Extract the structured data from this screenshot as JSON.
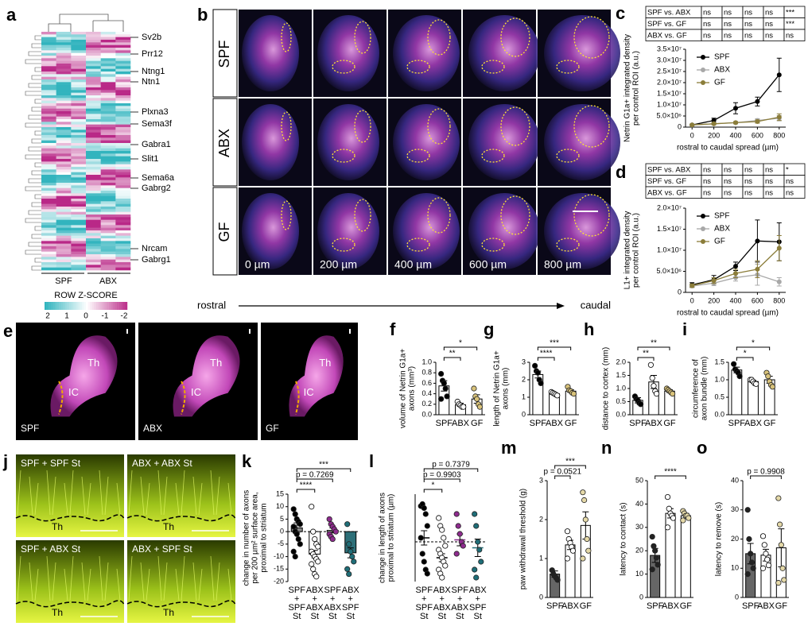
{
  "panel_letters": [
    "a",
    "b",
    "e",
    "j"
  ],
  "heatmap": {
    "genes": [
      "Sv2b",
      "Prr12",
      "Ntng1",
      "Ntn1",
      "Plxna3",
      "Sema3f",
      "Gabra1",
      "Slit1",
      "Sema6a",
      "Gabrg2",
      "Nrcam",
      "Gabrg1"
    ],
    "groups": [
      "SPF",
      "ABX"
    ],
    "scale_title": "ROW Z-SCORE",
    "scale_labels": [
      "2",
      "1",
      "0",
      "-1",
      "-2"
    ]
  },
  "sections": {
    "rows": [
      "SPF",
      "ABX",
      "GF"
    ],
    "columns": [
      "0 µm",
      "200 µm",
      "400 µm",
      "600 µm",
      "800 µm"
    ],
    "axis_start": "rostral",
    "axis_end": "caudal"
  },
  "explants": {
    "labels": [
      "SPF",
      "ABX",
      "GF"
    ],
    "th": "Th",
    "ic": "IC"
  },
  "cocultures": {
    "labels": [
      "SPF + SPF St",
      "ABX + ABX St",
      "SPF + ABX St",
      "ABX + SPF St"
    ],
    "th": "Th"
  },
  "chart_data": [
    {
      "type": "line",
      "panel": "c",
      "ylabel": [
        "Netrin G1a+ integrated density",
        "per control ROI (a.u.)"
      ],
      "xlabel": "rostral to caudal spread (µm)",
      "table": [
        [
          "SPF vs. ABX",
          "ns",
          "ns",
          "ns",
          "ns",
          "***"
        ],
        [
          "SPF vs. GF",
          "ns",
          "ns",
          "ns",
          "ns",
          "***"
        ],
        [
          "ABX vs. GF",
          "ns",
          "ns",
          "ns",
          "ns",
          "ns"
        ]
      ],
      "x": [
        0,
        200,
        400,
        600,
        800
      ],
      "xlim": [
        -60,
        860
      ],
      "xticks": [
        0,
        200,
        400,
        600,
        800
      ],
      "ylim": [
        0,
        35000000
      ],
      "yticks": [
        0,
        {
          "value": 5000000,
          "label": "5.0×10⁶"
        },
        {
          "value": 10000000,
          "label": "1.0×10⁷"
        },
        {
          "value": 15000000,
          "label": "1.5×10⁷"
        },
        {
          "value": 20000000,
          "label": "2.0×10⁷"
        },
        {
          "value": 25000000,
          "label": "2.5×10⁷"
        },
        {
          "value": 30000000,
          "label": "3.0×10⁷"
        },
        {
          "value": 35000000,
          "label": "3.5×10⁷"
        }
      ],
      "series": [
        {
          "name": "SPF",
          "color": "#000000",
          "values": [
            1000000,
            3000000,
            8500000,
            11500000,
            23500000
          ],
          "errors": [
            300000,
            1000000,
            2500000,
            2000000,
            7500000
          ]
        },
        {
          "name": "ABX",
          "color": "#a8a8a8",
          "values": [
            1000000,
            1500000,
            2000000,
            3000000,
            4000000
          ],
          "errors": [
            200000,
            500000,
            500000,
            800000,
            1200000
          ]
        },
        {
          "name": "GF",
          "color": "#8b7d3a",
          "values": [
            1000000,
            1500000,
            2000000,
            2500000,
            4500000
          ],
          "errors": [
            200000,
            400000,
            500000,
            700000,
            1500000
          ]
        }
      ]
    },
    {
      "type": "line",
      "panel": "d",
      "ylabel": [
        "L1+ integrated density",
        "per control ROI (a.u.)"
      ],
      "xlabel": "rostral to caudal spread (µm)",
      "table": [
        [
          "SPF vs. ABX",
          "ns",
          "ns",
          "ns",
          "ns",
          "*"
        ],
        [
          "SPF vs. GF",
          "ns",
          "ns",
          "ns",
          "ns",
          "ns"
        ],
        [
          "ABX vs. GF",
          "ns",
          "ns",
          "ns",
          "ns",
          "ns"
        ]
      ],
      "x": [
        0,
        200,
        400,
        600,
        800
      ],
      "xlim": [
        -60,
        860
      ],
      "xticks": [
        0,
        200,
        400,
        600,
        800
      ],
      "ylim": [
        0,
        20000000
      ],
      "yticks": [
        0,
        {
          "value": 5000000,
          "label": "5.0×10⁶"
        },
        {
          "value": 10000000,
          "label": "1.0×10⁷"
        },
        {
          "value": 15000000,
          "label": "1.5×10⁷"
        },
        {
          "value": 20000000,
          "label": "2.0×10⁷"
        }
      ],
      "series": [
        {
          "name": "SPF",
          "color": "#000000",
          "values": [
            1800000,
            3000000,
            6200000,
            12200000,
            12000000
          ],
          "errors": [
            500000,
            1000000,
            1000000,
            5000000,
            4500000
          ]
        },
        {
          "name": "ABX",
          "color": "#a8a8a8",
          "values": [
            1500000,
            2200000,
            3500000,
            4200000,
            2500000
          ],
          "errors": [
            400000,
            600000,
            800000,
            2500000,
            1000000
          ]
        },
        {
          "name": "GF",
          "color": "#8b7d3a",
          "values": [
            1600000,
            2800000,
            4500000,
            5500000,
            10500000
          ],
          "errors": [
            400000,
            700000,
            1000000,
            2000000,
            3000000
          ]
        }
      ]
    },
    {
      "type": "bar",
      "panel": "f",
      "ylabel": [
        "volume of Netrin G1a+",
        "axons (mm³)"
      ],
      "categories": [
        [
          "SPF"
        ],
        [
          "ABX"
        ],
        [
          "GF"
        ]
      ],
      "ylim": [
        0,
        1
      ],
      "yticks": [
        {
          "value": 0,
          "label": "0.0"
        },
        0.2,
        0.4,
        0.6,
        0.8,
        {
          "value": 1,
          "label": "1.0"
        }
      ],
      "values": [
        0.55,
        0.19,
        0.3
      ],
      "errors": [
        0.1,
        0.03,
        0.08
      ],
      "bar_colors": [
        "#ffffff",
        "#ffffff",
        "#ffffff"
      ],
      "point_colors": [
        "#000000",
        "#ffffff",
        "#d8c27a"
      ],
      "points": [
        [
          0.78,
          0.65,
          0.6,
          0.5,
          0.35,
          0.3
        ],
        [
          0.25,
          0.2,
          0.18,
          0.15,
          0.15
        ],
        [
          0.5,
          0.35,
          0.3,
          0.2,
          0.15
        ]
      ],
      "sig": [
        {
          "from": 0,
          "to": 1,
          "label": "**"
        },
        {
          "from": 0,
          "to": 2,
          "label": "*"
        }
      ]
    },
    {
      "type": "bar",
      "panel": "g",
      "ylabel": [
        "length of Netrin G1a+",
        "axons (mm)"
      ],
      "categories": [
        [
          "SPF"
        ],
        [
          "ABX"
        ],
        [
          "GF"
        ]
      ],
      "ylim": [
        0,
        3
      ],
      "yticks": [
        0,
        1,
        2,
        3
      ],
      "values": [
        2.3,
        1.2,
        1.35
      ],
      "errors": [
        0.2,
        0.05,
        0.08
      ],
      "bar_colors": [
        "#ffffff",
        "#ffffff",
        "#ffffff"
      ],
      "point_colors": [
        "#000000",
        "#ffffff",
        "#d8c27a"
      ],
      "points": [
        [
          2.8,
          2.5,
          2.4,
          2.0,
          1.8
        ],
        [
          1.3,
          1.25,
          1.2,
          1.15,
          1.1
        ],
        [
          1.6,
          1.4,
          1.35,
          1.25,
          1.2
        ]
      ],
      "sig": [
        {
          "from": 0,
          "to": 1,
          "label": "****"
        },
        {
          "from": 0,
          "to": 2,
          "label": "***"
        }
      ]
    },
    {
      "type": "bar",
      "panel": "h",
      "ylabel": [
        "distance to cortex (mm)"
      ],
      "categories": [
        [
          "SPF"
        ],
        [
          "ABX"
        ],
        [
          "GF"
        ]
      ],
      "ylim": [
        0,
        2
      ],
      "yticks": [
        {
          "value": 0,
          "label": "0.0"
        },
        0.5,
        {
          "value": 1,
          "label": "1.0"
        },
        1.5,
        {
          "value": 2,
          "label": "2.0"
        }
      ],
      "values": [
        0.55,
        1.25,
        0.9
      ],
      "errors": [
        0.1,
        0.25,
        0.05
      ],
      "bar_colors": [
        "#ffffff",
        "#ffffff",
        "#ffffff"
      ],
      "point_colors": [
        "#000000",
        "#ffffff",
        "#d8c27a"
      ],
      "points": [
        [
          0.7,
          0.6,
          0.55,
          0.45,
          0.4
        ],
        [
          1.9,
          1.4,
          1.1,
          0.9,
          0.8
        ],
        [
          1.0,
          0.95,
          0.9,
          0.85,
          0.8
        ]
      ],
      "sig": [
        {
          "from": 0,
          "to": 1,
          "label": "**"
        },
        {
          "from": 0,
          "to": 2,
          "label": "**"
        }
      ]
    },
    {
      "type": "bar",
      "panel": "i",
      "ylabel": [
        "circumference of",
        "axon bundle (mm)"
      ],
      "categories": [
        [
          "SPF"
        ],
        [
          "ABX"
        ],
        [
          "GF"
        ]
      ],
      "ylim": [
        0,
        1.5
      ],
      "yticks": [
        {
          "value": 0,
          "label": "0.0"
        },
        0.5,
        {
          "value": 1,
          "label": "1.0"
        },
        1.5
      ],
      "values": [
        1.28,
        0.95,
        1.0
      ],
      "errors": [
        0.08,
        0.03,
        0.1
      ],
      "bar_colors": [
        "#ffffff",
        "#ffffff",
        "#ffffff"
      ],
      "point_colors": [
        "#000000",
        "#ffffff",
        "#d8c27a"
      ],
      "points": [
        [
          1.45,
          1.3,
          1.25,
          1.2,
          1.1
        ],
        [
          1.0,
          1.0,
          0.95,
          0.9,
          0.88
        ],
        [
          1.2,
          1.1,
          0.95,
          0.85,
          0.8
        ]
      ],
      "sig": [
        {
          "from": 0,
          "to": 1,
          "label": "*"
        },
        {
          "from": 0,
          "to": 2,
          "label": "*"
        }
      ]
    },
    {
      "type": "bar",
      "panel": "k",
      "ylabel": [
        "change in number of axons",
        "per 200 µm² surface area,",
        "proximal to striatum"
      ],
      "categories": [
        [
          "SPF",
          "+",
          "SPF",
          "St"
        ],
        [
          "ABX",
          "+",
          "ABX",
          "St"
        ],
        [
          "SPF",
          "+",
          "ABX",
          "St"
        ],
        [
          "ABX",
          "+",
          "SPF",
          "St"
        ]
      ],
      "ylim": [
        -20,
        15
      ],
      "yticks": [
        -20,
        -15,
        -10,
        -5,
        0,
        5,
        10,
        15
      ],
      "zero_line": true,
      "values": [
        1.5,
        -9,
        0.5,
        -8.5
      ],
      "errors": [
        2,
        1.5,
        1,
        2
      ],
      "bar_colors": [
        "#8c8c8c",
        "#ffffff",
        "#ffffff",
        "#2d6f78"
      ],
      "point_colors": [
        "#000000",
        "#ffffff",
        "#8e2c8e",
        "#1f6e78"
      ],
      "points": [
        [
          9,
          7,
          5,
          4,
          3,
          2,
          0,
          -1,
          -3,
          -5,
          -8,
          -10
        ],
        [
          10,
          0,
          -3,
          -5,
          -6,
          -8,
          -9,
          -10,
          -11,
          -12,
          -13,
          -15,
          -17,
          -18
        ],
        [
          5,
          3,
          2,
          1,
          0,
          -1,
          -2,
          -3
        ],
        [
          3,
          -5,
          -8,
          -10,
          -12,
          -15,
          -17
        ]
      ],
      "sig": [
        {
          "from": 0,
          "to": 1,
          "label": "****"
        },
        {
          "from": 0,
          "to": 2,
          "label": "p = 0.7269"
        },
        {
          "from": 0,
          "to": 3,
          "label": "***"
        }
      ]
    },
    {
      "type": "bar",
      "panel": "l",
      "ylabel": [
        "change in length of axons",
        "proximal to striatum (µm)"
      ],
      "categories": [
        [
          "SPF",
          "+",
          "SPF",
          "St"
        ],
        [
          "ABX",
          "+",
          "ABX",
          "St"
        ],
        [
          "SPF",
          "+",
          "ABX",
          "St"
        ],
        [
          "ABX",
          "+",
          "SPF",
          "St"
        ]
      ],
      "ylim": [
        -1000,
        1200
      ],
      "zero_line": true,
      "mean_only": true,
      "values": [
        100,
        -400,
        50,
        -150
      ],
      "errors": [
        180,
        100,
        150,
        220
      ],
      "point_colors": [
        "#000000",
        "#ffffff",
        "#8e2c8e",
        "#1f6e78"
      ],
      "points": [
        [
          900,
          950,
          850,
          700,
          400,
          100,
          -300,
          -500,
          -700,
          -800
        ],
        [
          600,
          400,
          300,
          100,
          -100,
          -200,
          -300,
          -400,
          -500,
          -600,
          -700,
          -800,
          -900
        ],
        [
          700,
          400,
          200,
          0,
          -100,
          -300
        ],
        [
          700,
          400,
          0,
          -200,
          -500,
          -700,
          -900
        ]
      ],
      "sig": [
        {
          "from": 0,
          "to": 1,
          "label": "*"
        },
        {
          "from": 0,
          "to": 2,
          "label": "p = 0.9903"
        },
        {
          "from": 0,
          "to": 3,
          "label": "p = 0.7379"
        }
      ]
    },
    {
      "type": "bar",
      "panel": "m",
      "ylabel": [
        "paw withdrawal threshold (g)"
      ],
      "categories": [
        [
          "SPF"
        ],
        [
          "ABX"
        ],
        [
          "GF"
        ]
      ],
      "ylim": [
        0,
        3
      ],
      "yticks": [
        0,
        1,
        2,
        3
      ],
      "values": [
        0.6,
        1.35,
        1.85
      ],
      "errors": [
        0.08,
        0.12,
        0.35
      ],
      "bar_colors": [
        "#666666",
        "#ffffff",
        "#ffffff"
      ],
      "point_colors": [
        "#222222",
        "#ffffff",
        "#e5d9a8"
      ],
      "points": [
        [
          0.7,
          0.6,
          0.55,
          0.5,
          0.45
        ],
        [
          1.7,
          1.5,
          1.4,
          1.3,
          1.2,
          1.0
        ],
        [
          2.7,
          2.5,
          2.0,
          1.5,
          1.2,
          1.0
        ]
      ],
      "sig": [
        {
          "from": 0,
          "to": 1,
          "label": "p = 0.0521"
        },
        {
          "from": 0,
          "to": 2,
          "label": "***"
        }
      ]
    },
    {
      "type": "bar",
      "panel": "n",
      "ylabel": [
        "latency to contact (s)"
      ],
      "categories": [
        [
          "SPF"
        ],
        [
          "ABX"
        ],
        [
          "GF"
        ]
      ],
      "ylim": [
        0,
        50
      ],
      "yticks": [
        0,
        10,
        20,
        30,
        40,
        50
      ],
      "values": [
        18,
        36,
        35
      ],
      "errors": [
        3,
        2,
        1
      ],
      "bar_colors": [
        "#666666",
        "#ffffff",
        "#ffffff"
      ],
      "point_colors": [
        "#222222",
        "#ffffff",
        "#e5d9a8"
      ],
      "points": [
        [
          26,
          22,
          20,
          17,
          14,
          12
        ],
        [
          43,
          38,
          36,
          35,
          34,
          30
        ],
        [
          37,
          36,
          35,
          35,
          34,
          33
        ]
      ],
      "sig": [
        {
          "from": 0,
          "to": 2,
          "label": "****"
        }
      ]
    },
    {
      "type": "bar",
      "panel": "o",
      "ylabel": [
        "latency to remove (s)"
      ],
      "categories": [
        [
          "SPF"
        ],
        [
          "ABX"
        ],
        [
          "GF"
        ]
      ],
      "ylim": [
        0,
        40
      ],
      "yticks": [
        0,
        10,
        20,
        30,
        40
      ],
      "values": [
        15,
        14.5,
        17
      ],
      "errors": [
        3.5,
        2,
        6.5
      ],
      "bar_colors": [
        "#666666",
        "#ffffff",
        "#ffffff"
      ],
      "point_colors": [
        "#222222",
        "#ffffff",
        "#e5d9a8"
      ],
      "points": [
        [
          30,
          20,
          15,
          12,
          10,
          8
        ],
        [
          21,
          18,
          15,
          13,
          11,
          10
        ],
        [
          34,
          25,
          18,
          10,
          6,
          5
        ]
      ],
      "sig": [
        {
          "from": 0,
          "to": 2,
          "label": "p = 0.9908"
        }
      ]
    }
  ]
}
